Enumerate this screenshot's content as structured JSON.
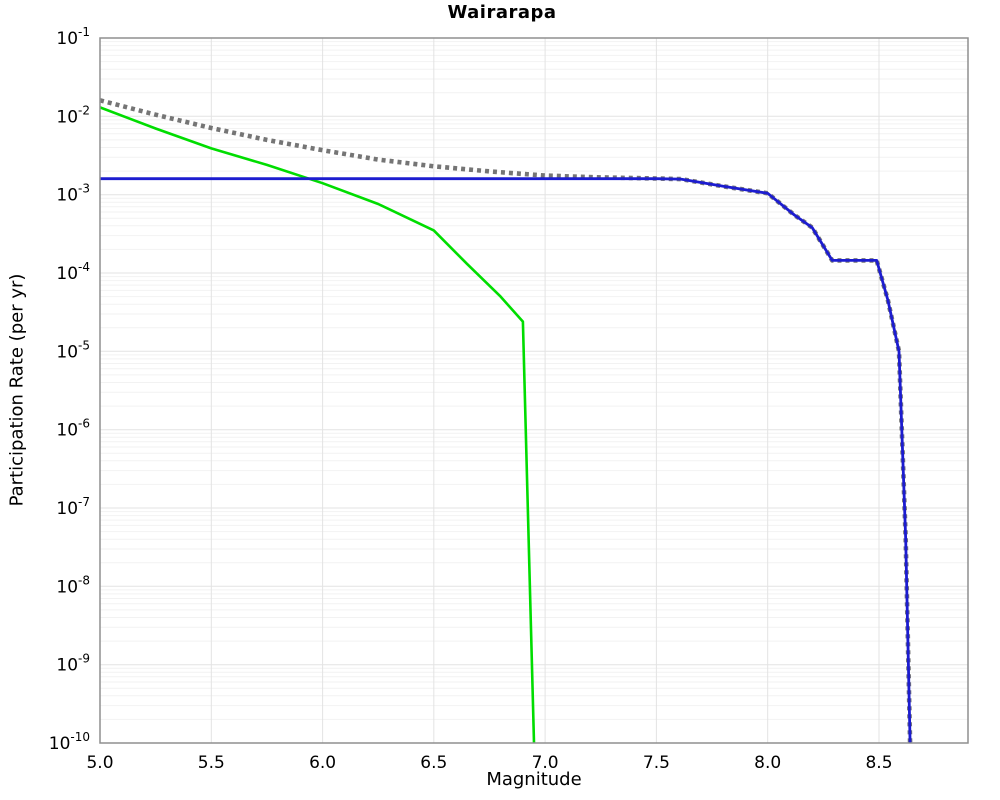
{
  "chart_data": {
    "type": "line",
    "title": "Wairarapa",
    "xlabel": "Magnitude",
    "ylabel": "Participation Rate (per yr)",
    "xlim": [
      5.0,
      8.9
    ],
    "ylim": [
      1e-10,
      0.1
    ],
    "y_scale": "log",
    "grid": true,
    "legend": "none",
    "x_ticks": [
      5.0,
      5.5,
      6.0,
      6.5,
      7.0,
      7.5,
      8.0,
      8.5
    ],
    "x_tick_labels": [
      "5.0",
      "5.5",
      "6.0",
      "6.5",
      "7.0",
      "7.5",
      "8.0",
      "8.5"
    ],
    "y_tick_exponents": [
      -1,
      -2,
      -3,
      -4,
      -5,
      -6,
      -7,
      -8,
      -9,
      -10
    ],
    "series": [
      {
        "name": "gray-dotted",
        "color": "#757575",
        "style": "dotted",
        "width": 4.6,
        "points": [
          [
            5.0,
            0.016
          ],
          [
            5.25,
            0.0105
          ],
          [
            5.5,
            0.0071
          ],
          [
            5.75,
            0.005
          ],
          [
            6.0,
            0.0037
          ],
          [
            6.25,
            0.0028
          ],
          [
            6.5,
            0.0023
          ],
          [
            6.75,
            0.00198
          ],
          [
            7.0,
            0.00175
          ],
          [
            7.25,
            0.00166
          ],
          [
            7.5,
            0.00161
          ],
          [
            7.61,
            0.00158
          ],
          [
            7.8,
            0.00128
          ],
          [
            8.0,
            0.00104
          ],
          [
            8.12,
            0.00055
          ],
          [
            8.2,
            0.00038
          ],
          [
            8.29,
            0.000145
          ],
          [
            8.49,
            0.000145
          ],
          [
            8.54,
            4.5e-05
          ],
          [
            8.59,
            1e-05
          ],
          [
            8.62,
            4e-08
          ],
          [
            8.64,
            1e-10
          ]
        ]
      },
      {
        "name": "green-solid",
        "color": "#00dd00",
        "style": "solid",
        "width": 2.6,
        "points": [
          [
            5.0,
            0.013
          ],
          [
            5.25,
            0.007
          ],
          [
            5.5,
            0.0039
          ],
          [
            5.75,
            0.0024
          ],
          [
            6.0,
            0.0014
          ],
          [
            6.25,
            0.00076
          ],
          [
            6.5,
            0.00035
          ],
          [
            6.65,
            0.00013
          ],
          [
            6.8,
            5e-05
          ],
          [
            6.9,
            2.4e-05
          ],
          [
            6.95,
            1e-10
          ]
        ]
      },
      {
        "name": "blue-solid",
        "color": "#1c1ccf",
        "style": "solid",
        "width": 2.8,
        "points": [
          [
            5.0,
            0.0016
          ],
          [
            7.5,
            0.0016
          ],
          [
            7.61,
            0.00158
          ],
          [
            7.8,
            0.00128
          ],
          [
            8.0,
            0.00104
          ],
          [
            8.12,
            0.00055
          ],
          [
            8.2,
            0.00038
          ],
          [
            8.29,
            0.000145
          ],
          [
            8.49,
            0.000145
          ],
          [
            8.54,
            4.5e-05
          ],
          [
            8.59,
            1e-05
          ],
          [
            8.62,
            4e-08
          ],
          [
            8.64,
            1e-10
          ]
        ]
      }
    ]
  }
}
